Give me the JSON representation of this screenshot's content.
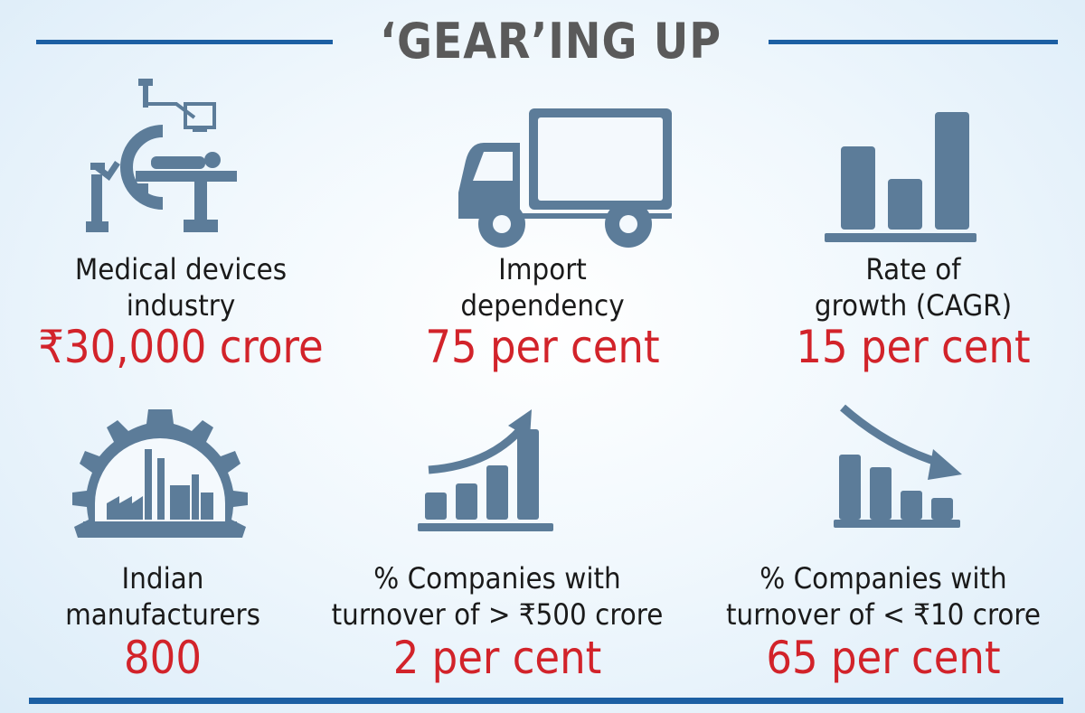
{
  "title": "‘GEAR’ING UP",
  "stats": [
    {
      "label_line1": "Medical devices",
      "label_line2": "industry",
      "value": "₹30,000 crore",
      "icon": "medical-equipment-icon"
    },
    {
      "label_line1": "Import",
      "label_line2": "dependency",
      "value": "75 per cent",
      "icon": "truck-icon"
    },
    {
      "label_line1": "Rate of",
      "label_line2": "growth (CAGR)",
      "value": "15 per cent",
      "icon": "bar-chart-icon"
    },
    {
      "label_line1": "Indian",
      "label_line2": "manufacturers",
      "value": "800",
      "icon": "gear-factory-icon"
    },
    {
      "label_line1": "% Companies with",
      "label_line2": "turnover of > ₹500 crore",
      "value": "2 per cent",
      "icon": "rising-bars-icon"
    },
    {
      "label_line1": "% Companies with",
      "label_line2": "turnover of < ₹10 crore",
      "value": "65 per cent",
      "icon": "falling-bars-icon"
    }
  ],
  "colors": {
    "accent": "#1c5fa3",
    "icon": "#5c7c99",
    "value": "#d2232a",
    "title": "#5a5a5a"
  }
}
